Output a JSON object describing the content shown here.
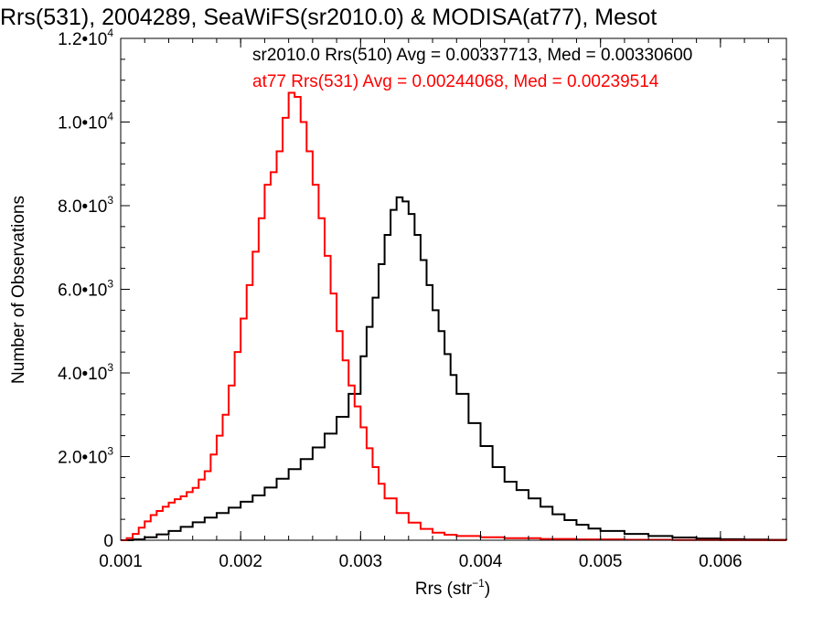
{
  "chart_data": {
    "type": "histogram-step",
    "title": "Rrs(531), 2004289, SeaWiFS(sr2010.0) & MODISA(at77), Mesot",
    "xlabel": {
      "base": "Rrs (str",
      "exponent": "−1",
      "close": ")"
    },
    "ylabel": "Number of Observations",
    "xlim": [
      0.001,
      0.00655
    ],
    "ylim": [
      0,
      12000
    ],
    "x_ticks": [
      {
        "value": 0.001,
        "label": "0.001"
      },
      {
        "value": 0.002,
        "label": "0.002"
      },
      {
        "value": 0.003,
        "label": "0.003"
      },
      {
        "value": 0.004,
        "label": "0.004"
      },
      {
        "value": 0.005,
        "label": "0.005"
      },
      {
        "value": 0.006,
        "label": "0.006"
      }
    ],
    "y_ticks": [
      {
        "value": 0,
        "mantissa": "0",
        "exponent": ""
      },
      {
        "value": 2000,
        "mantissa": "2.0•10",
        "exponent": "3"
      },
      {
        "value": 4000,
        "mantissa": "4.0•10",
        "exponent": "3"
      },
      {
        "value": 6000,
        "mantissa": "6.0•10",
        "exponent": "3"
      },
      {
        "value": 8000,
        "mantissa": "8.0•10",
        "exponent": "3"
      },
      {
        "value": 10000,
        "mantissa": "1.0•10",
        "exponent": "4"
      },
      {
        "value": 12000,
        "mantissa": "1.2•10",
        "exponent": "4"
      }
    ],
    "annotations": [
      {
        "text": "sr2010.0 Rrs(510) Avg = 0.00337713, Med = 0.00330600",
        "color": "#000000"
      },
      {
        "text": "at77 Rrs(531) Avg = 0.00244068, Med = 0.00239514",
        "color": "#ff0000"
      }
    ],
    "series": [
      {
        "color": "#000000",
        "points": [
          [
            0.001,
            0
          ],
          [
            0.0011,
            20
          ],
          [
            0.0012,
            70
          ],
          [
            0.0013,
            140
          ],
          [
            0.0014,
            220
          ],
          [
            0.0015,
            320
          ],
          [
            0.0016,
            430
          ],
          [
            0.0017,
            540
          ],
          [
            0.0018,
            650
          ],
          [
            0.0019,
            780
          ],
          [
            0.002,
            920
          ],
          [
            0.0021,
            1070
          ],
          [
            0.0022,
            1260
          ],
          [
            0.0023,
            1470
          ],
          [
            0.0024,
            1700
          ],
          [
            0.0025,
            1940
          ],
          [
            0.0026,
            2220
          ],
          [
            0.0027,
            2550
          ],
          [
            0.0028,
            2950
          ],
          [
            0.0029,
            3500
          ],
          [
            0.003,
            4400
          ],
          [
            0.00305,
            5100
          ],
          [
            0.0031,
            5800
          ],
          [
            0.00315,
            6600
          ],
          [
            0.0032,
            7300
          ],
          [
            0.00325,
            7900
          ],
          [
            0.0033,
            8200
          ],
          [
            0.00335,
            8100
          ],
          [
            0.0034,
            7800
          ],
          [
            0.00345,
            7300
          ],
          [
            0.0035,
            6700
          ],
          [
            0.00355,
            6100
          ],
          [
            0.0036,
            5500
          ],
          [
            0.00365,
            5000
          ],
          [
            0.0037,
            4450
          ],
          [
            0.00375,
            3950
          ],
          [
            0.0038,
            3500
          ],
          [
            0.0039,
            2800
          ],
          [
            0.004,
            2250
          ],
          [
            0.0041,
            1750
          ],
          [
            0.0042,
            1400
          ],
          [
            0.0043,
            1200
          ],
          [
            0.0044,
            1000
          ],
          [
            0.0045,
            800
          ],
          [
            0.0046,
            620
          ],
          [
            0.0047,
            480
          ],
          [
            0.0048,
            370
          ],
          [
            0.0049,
            280
          ],
          [
            0.005,
            220
          ],
          [
            0.0052,
            150
          ],
          [
            0.0054,
            100
          ],
          [
            0.0056,
            65
          ],
          [
            0.0058,
            40
          ],
          [
            0.006,
            25
          ],
          [
            0.0062,
            15
          ],
          [
            0.0064,
            8
          ],
          [
            0.00655,
            5
          ]
        ]
      },
      {
        "color": "#ff0000",
        "points": [
          [
            0.001,
            0
          ],
          [
            0.00105,
            50
          ],
          [
            0.0011,
            150
          ],
          [
            0.00115,
            300
          ],
          [
            0.0012,
            450
          ],
          [
            0.00125,
            600
          ],
          [
            0.0013,
            700
          ],
          [
            0.00135,
            800
          ],
          [
            0.0014,
            900
          ],
          [
            0.00145,
            980
          ],
          [
            0.0015,
            1050
          ],
          [
            0.00155,
            1150
          ],
          [
            0.0016,
            1250
          ],
          [
            0.00165,
            1450
          ],
          [
            0.0017,
            1650
          ],
          [
            0.00175,
            2050
          ],
          [
            0.0018,
            2500
          ],
          [
            0.00185,
            3000
          ],
          [
            0.0019,
            3700
          ],
          [
            0.00195,
            4500
          ],
          [
            0.002,
            5300
          ],
          [
            0.00205,
            6100
          ],
          [
            0.0021,
            6900
          ],
          [
            0.00215,
            7700
          ],
          [
            0.0022,
            8500
          ],
          [
            0.00225,
            8800
          ],
          [
            0.0023,
            9300
          ],
          [
            0.00235,
            10100
          ],
          [
            0.0024,
            10700
          ],
          [
            0.00245,
            10600
          ],
          [
            0.0025,
            10000
          ],
          [
            0.00255,
            9300
          ],
          [
            0.0026,
            8500
          ],
          [
            0.00265,
            7700
          ],
          [
            0.0027,
            6800
          ],
          [
            0.00275,
            5900
          ],
          [
            0.0028,
            5000
          ],
          [
            0.00285,
            4300
          ],
          [
            0.0029,
            3700
          ],
          [
            0.00295,
            3200
          ],
          [
            0.003,
            2700
          ],
          [
            0.00305,
            2200
          ],
          [
            0.0031,
            1750
          ],
          [
            0.00315,
            1350
          ],
          [
            0.0032,
            1000
          ],
          [
            0.0033,
            650
          ],
          [
            0.0034,
            420
          ],
          [
            0.0035,
            270
          ],
          [
            0.0036,
            180
          ],
          [
            0.0037,
            130
          ],
          [
            0.0038,
            100
          ],
          [
            0.004,
            70
          ],
          [
            0.0042,
            50
          ],
          [
            0.0045,
            30
          ],
          [
            0.0048,
            20
          ],
          [
            0.0052,
            10
          ],
          [
            0.0056,
            5
          ],
          [
            0.006,
            3
          ],
          [
            0.00655,
            1
          ]
        ]
      }
    ]
  }
}
